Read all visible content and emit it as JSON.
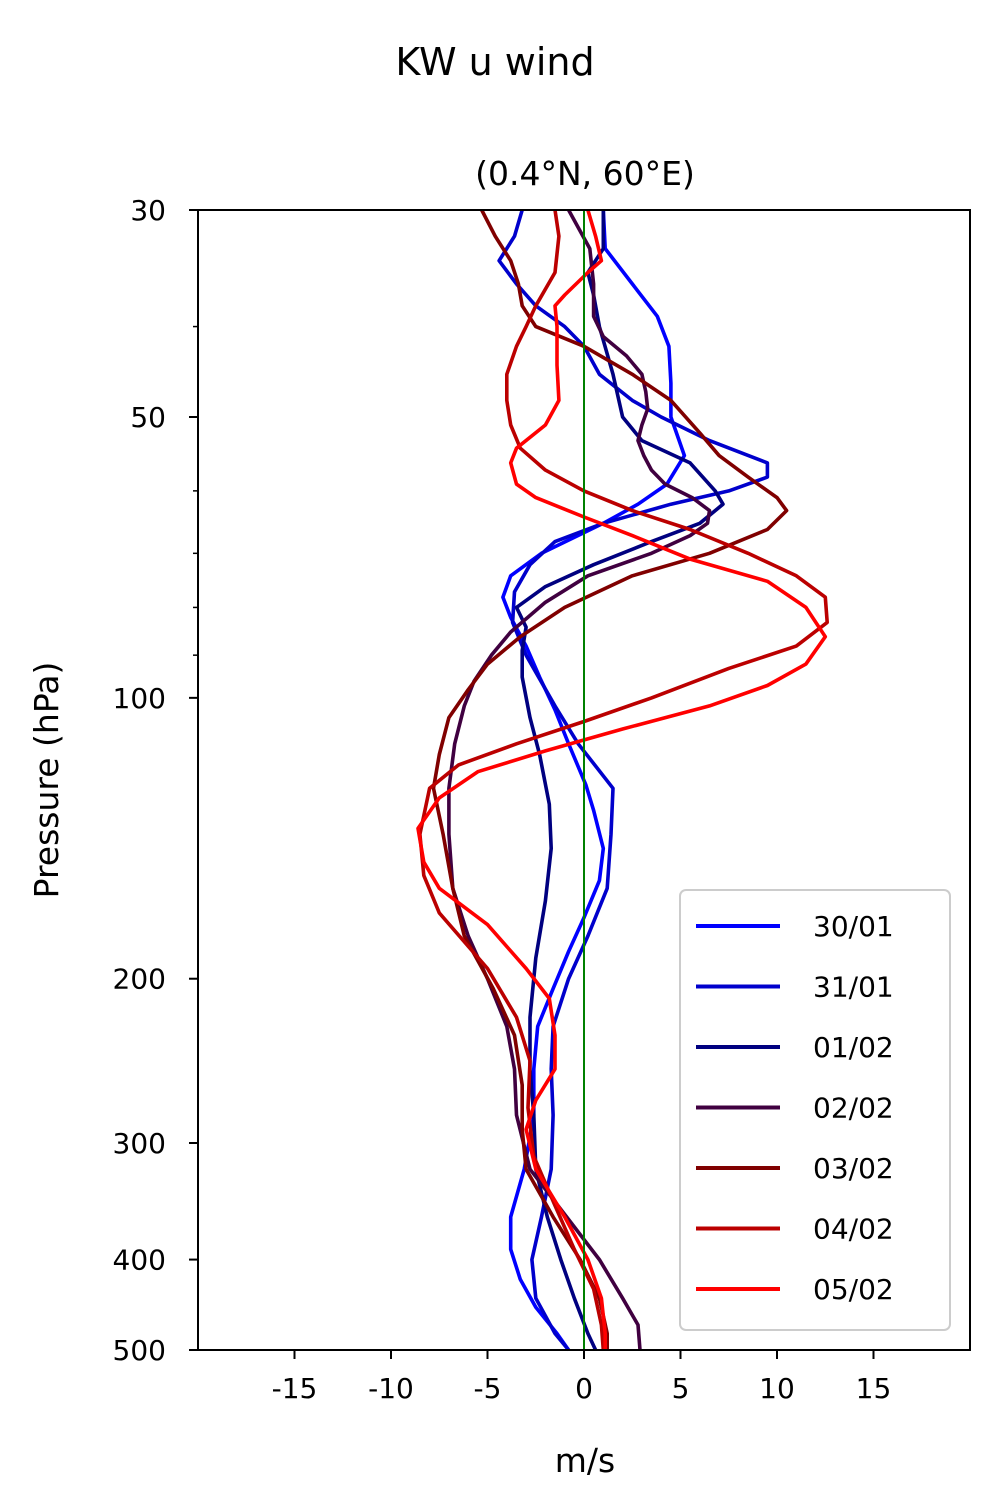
{
  "chart_data": {
    "type": "line",
    "suptitle": "KW u wind",
    "title": "(0.4°N, 60°E)",
    "xlabel": "m/s",
    "ylabel": "Pressure (hPa)",
    "xlim": [
      -20,
      20
    ],
    "ylim": [
      500,
      30
    ],
    "yscale": "log",
    "x_ticks": [
      -15,
      -10,
      -5,
      0,
      5,
      10,
      15
    ],
    "x_tick_labels": [
      "-15",
      "-10",
      "-5",
      "0",
      "5",
      "10",
      "15"
    ],
    "y_ticks": [
      30,
      50,
      100,
      200,
      300,
      400,
      500
    ],
    "y_tick_labels": [
      "30",
      "50",
      "100",
      "200",
      "300",
      "400",
      "500"
    ],
    "y_minor_ticks": [
      40,
      60,
      70,
      80,
      90
    ],
    "zero_line": {
      "x": 0,
      "color": "#008000"
    },
    "grid": false,
    "legend_position": "bottom-right",
    "series": [
      {
        "name": "30/01",
        "color": "#0000ff",
        "points": [
          [
            1.0,
            30
          ],
          [
            1.1,
            33
          ],
          [
            2.5,
            36
          ],
          [
            3.8,
            39
          ],
          [
            4.4,
            42
          ],
          [
            4.5,
            46
          ],
          [
            4.5,
            50
          ],
          [
            5.2,
            55
          ],
          [
            4.3,
            59
          ],
          [
            2.8,
            62
          ],
          [
            1.0,
            65
          ],
          [
            -2.2,
            70
          ],
          [
            -3.8,
            74
          ],
          [
            -4.2,
            78
          ],
          [
            -3.8,
            82
          ],
          [
            -3.0,
            88
          ],
          [
            -2.3,
            95
          ],
          [
            -1.5,
            103
          ],
          [
            -0.8,
            112
          ],
          [
            0.1,
            124
          ],
          [
            0.5,
            132
          ],
          [
            1.0,
            145
          ],
          [
            0.8,
            157
          ],
          [
            0.0,
            172
          ],
          [
            -0.8,
            187
          ],
          [
            -1.6,
            205
          ],
          [
            -2.4,
            225
          ],
          [
            -2.6,
            250
          ],
          [
            -2.6,
            280
          ],
          [
            -3.1,
            320
          ],
          [
            -3.8,
            360
          ],
          [
            -3.8,
            390
          ],
          [
            -3.3,
            420
          ],
          [
            -2.5,
            450
          ],
          [
            -1.4,
            480
          ],
          [
            -0.8,
            500
          ]
        ]
      },
      {
        "name": "31/01",
        "color": "#0000cc",
        "points": [
          [
            -3.2,
            30
          ],
          [
            -3.6,
            32
          ],
          [
            -4.4,
            34
          ],
          [
            -3.5,
            36
          ],
          [
            -2.5,
            38
          ],
          [
            -1.0,
            40
          ],
          [
            0.0,
            42
          ],
          [
            0.8,
            45
          ],
          [
            2.5,
            48
          ],
          [
            4.0,
            50
          ],
          [
            6.5,
            53
          ],
          [
            9.5,
            56
          ],
          [
            9.5,
            58
          ],
          [
            7.5,
            60
          ],
          [
            4.5,
            62
          ],
          [
            1.0,
            65
          ],
          [
            -1.5,
            68
          ],
          [
            -2.8,
            72
          ],
          [
            -3.6,
            77
          ],
          [
            -3.7,
            83
          ],
          [
            -3.0,
            90
          ],
          [
            -1.5,
            102
          ],
          [
            -0.3,
            112
          ],
          [
            1.5,
            125
          ],
          [
            1.4,
            140
          ],
          [
            1.2,
            160
          ],
          [
            0.2,
            180
          ],
          [
            -0.8,
            200
          ],
          [
            -1.6,
            225
          ],
          [
            -1.7,
            250
          ],
          [
            -1.6,
            280
          ],
          [
            -1.7,
            320
          ],
          [
            -2.2,
            360
          ],
          [
            -2.7,
            400
          ],
          [
            -2.5,
            440
          ],
          [
            -1.5,
            480
          ],
          [
            -0.8,
            500
          ]
        ]
      },
      {
        "name": "01/02",
        "color": "#000080",
        "points": [
          [
            1.0,
            30
          ],
          [
            1.0,
            33
          ],
          [
            0.2,
            35
          ],
          [
            0.5,
            37
          ],
          [
            0.8,
            40
          ],
          [
            1.5,
            45
          ],
          [
            2.0,
            50
          ],
          [
            3.0,
            53
          ],
          [
            5.5,
            56
          ],
          [
            6.8,
            60
          ],
          [
            7.2,
            62
          ],
          [
            6.0,
            65
          ],
          [
            3.5,
            68
          ],
          [
            0.5,
            72
          ],
          [
            -2.0,
            76
          ],
          [
            -3.5,
            80
          ],
          [
            -3.0,
            84
          ],
          [
            -3.2,
            89
          ],
          [
            -3.2,
            95
          ],
          [
            -2.8,
            105
          ],
          [
            -2.3,
            115
          ],
          [
            -1.8,
            130
          ],
          [
            -1.7,
            145
          ],
          [
            -2.0,
            165
          ],
          [
            -2.5,
            190
          ],
          [
            -2.8,
            220
          ],
          [
            -2.8,
            250
          ],
          [
            -2.6,
            280
          ],
          [
            -2.5,
            320
          ],
          [
            -1.9,
            360
          ],
          [
            -1.2,
            400
          ],
          [
            -0.5,
            440
          ],
          [
            0.2,
            480
          ],
          [
            0.6,
            500
          ]
        ]
      },
      {
        "name": "02/02",
        "color": "#400040",
        "points": [
          [
            -0.8,
            30
          ],
          [
            0.3,
            33
          ],
          [
            0.5,
            36
          ],
          [
            0.5,
            39
          ],
          [
            1.0,
            41
          ],
          [
            2.2,
            43
          ],
          [
            3.0,
            45
          ],
          [
            3.2,
            47
          ],
          [
            3.3,
            49
          ],
          [
            3.0,
            51
          ],
          [
            2.8,
            53
          ],
          [
            3.1,
            55
          ],
          [
            3.5,
            57
          ],
          [
            4.2,
            59
          ],
          [
            5.6,
            61
          ],
          [
            6.5,
            63
          ],
          [
            6.4,
            65
          ],
          [
            5.5,
            67
          ],
          [
            3.5,
            70
          ],
          [
            0.2,
            74
          ],
          [
            -2.0,
            79
          ],
          [
            -3.8,
            85
          ],
          [
            -4.8,
            90
          ],
          [
            -5.7,
            96
          ],
          [
            -6.2,
            102
          ],
          [
            -6.7,
            112
          ],
          [
            -7.0,
            125
          ],
          [
            -7.0,
            140
          ],
          [
            -6.8,
            160
          ],
          [
            -6.0,
            180
          ],
          [
            -5.0,
            200
          ],
          [
            -4.0,
            225
          ],
          [
            -3.6,
            250
          ],
          [
            -3.5,
            280
          ],
          [
            -2.8,
            320
          ],
          [
            -0.9,
            360
          ],
          [
            0.8,
            400
          ],
          [
            2.0,
            440
          ],
          [
            2.8,
            470
          ],
          [
            2.9,
            500
          ]
        ]
      },
      {
        "name": "03/02",
        "color": "#800000",
        "points": [
          [
            -5.3,
            30
          ],
          [
            -4.6,
            32
          ],
          [
            -3.8,
            34
          ],
          [
            -3.4,
            36
          ],
          [
            -3.2,
            38
          ],
          [
            -2.5,
            40
          ],
          [
            0.0,
            42
          ],
          [
            2.5,
            45
          ],
          [
            4.5,
            48
          ],
          [
            6.0,
            52
          ],
          [
            7.0,
            55
          ],
          [
            8.5,
            58
          ],
          [
            10.0,
            61
          ],
          [
            10.5,
            63
          ],
          [
            9.5,
            66
          ],
          [
            6.5,
            70
          ],
          [
            2.5,
            74
          ],
          [
            -1.0,
            80
          ],
          [
            -3.3,
            86
          ],
          [
            -5.0,
            92
          ],
          [
            -6.0,
            98
          ],
          [
            -7.0,
            105
          ],
          [
            -7.5,
            115
          ],
          [
            -7.8,
            125
          ],
          [
            -7.3,
            140
          ],
          [
            -6.8,
            160
          ],
          [
            -6.2,
            180
          ],
          [
            -4.7,
            205
          ],
          [
            -3.6,
            230
          ],
          [
            -3.2,
            260
          ],
          [
            -3.2,
            290
          ],
          [
            -3.0,
            320
          ],
          [
            -1.6,
            360
          ],
          [
            -0.2,
            400
          ],
          [
            0.8,
            440
          ],
          [
            1.2,
            480
          ],
          [
            1.2,
            500
          ]
        ]
      },
      {
        "name": "04/02",
        "color": "#bb0000",
        "points": [
          [
            -1.5,
            30
          ],
          [
            -1.3,
            32
          ],
          [
            -1.5,
            35
          ],
          [
            -2.5,
            38
          ],
          [
            -3.0,
            40
          ],
          [
            -3.5,
            42
          ],
          [
            -4.0,
            45
          ],
          [
            -4.0,
            48
          ],
          [
            -3.8,
            51
          ],
          [
            -3.3,
            54
          ],
          [
            -2.0,
            57
          ],
          [
            0.0,
            60
          ],
          [
            2.5,
            63
          ],
          [
            5.5,
            66
          ],
          [
            8.5,
            70
          ],
          [
            11.0,
            74
          ],
          [
            12.5,
            78
          ],
          [
            12.6,
            83
          ],
          [
            11.0,
            88
          ],
          [
            7.5,
            93
          ],
          [
            3.5,
            100
          ],
          [
            0.0,
            106
          ],
          [
            -3.5,
            112
          ],
          [
            -6.5,
            118
          ],
          [
            -8.0,
            125
          ],
          [
            -8.5,
            140
          ],
          [
            -8.3,
            155
          ],
          [
            -7.5,
            170
          ],
          [
            -5.0,
            195
          ],
          [
            -3.5,
            220
          ],
          [
            -2.8,
            245
          ],
          [
            -2.9,
            275
          ],
          [
            -2.6,
            310
          ],
          [
            -1.5,
            350
          ],
          [
            -0.5,
            390
          ],
          [
            0.5,
            430
          ],
          [
            0.9,
            470
          ],
          [
            1.0,
            500
          ]
        ]
      },
      {
        "name": "05/02",
        "color": "#ff0000",
        "points": [
          [
            0.2,
            30
          ],
          [
            0.6,
            32
          ],
          [
            0.9,
            34
          ],
          [
            0.2,
            35
          ],
          [
            -1.0,
            37
          ],
          [
            -1.5,
            38
          ],
          [
            -1.4,
            40
          ],
          [
            -1.4,
            44
          ],
          [
            -1.3,
            48
          ],
          [
            -2.0,
            51
          ],
          [
            -3.5,
            54
          ],
          [
            -3.8,
            56
          ],
          [
            -3.5,
            59
          ],
          [
            -2.5,
            61
          ],
          [
            0.0,
            64
          ],
          [
            2.5,
            67
          ],
          [
            5.5,
            71
          ],
          [
            9.5,
            75
          ],
          [
            11.5,
            80
          ],
          [
            12.5,
            86
          ],
          [
            11.5,
            92
          ],
          [
            9.5,
            97
          ],
          [
            6.5,
            102
          ],
          [
            2.0,
            108
          ],
          [
            -2.0,
            114
          ],
          [
            -5.5,
            120
          ],
          [
            -7.5,
            128
          ],
          [
            -8.6,
            138
          ],
          [
            -8.3,
            150
          ],
          [
            -7.5,
            160
          ],
          [
            -5.0,
            175
          ],
          [
            -3.0,
            195
          ],
          [
            -1.8,
            210
          ],
          [
            -1.5,
            230
          ],
          [
            -1.5,
            250
          ],
          [
            -2.5,
            270
          ],
          [
            -3.0,
            290
          ],
          [
            -2.5,
            320
          ],
          [
            -1.0,
            360
          ],
          [
            0.2,
            400
          ],
          [
            0.9,
            440
          ],
          [
            1.1,
            480
          ],
          [
            1.1,
            500
          ]
        ]
      }
    ]
  }
}
